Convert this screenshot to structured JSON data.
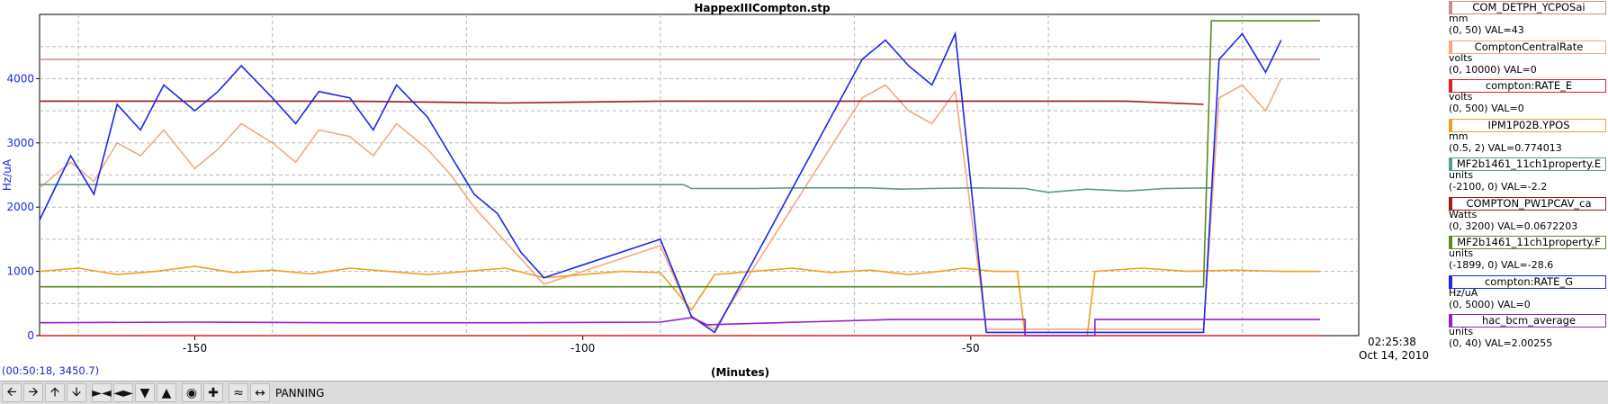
{
  "chart_data": {
    "type": "line",
    "title": "HappexIIICompton.stp",
    "xlabel": "(Minutes)",
    "ylabel": "Hz/uA",
    "xlim": [
      -170,
      0
    ],
    "ylim": [
      0,
      5000
    ],
    "x_ticks": [
      -150,
      -100,
      -50
    ],
    "y_ticks": [
      0,
      1000,
      2000,
      3000,
      4000
    ],
    "grid": true,
    "legend_position": "right",
    "series": [
      {
        "name": "COM_DETPH_YCPOSai",
        "color": "#c8908a",
        "unit": "mm",
        "range": "(0, 50)",
        "val": "VAL=43",
        "values": [
          [
            -170,
            4300
          ],
          [
            -5,
            4300
          ]
        ]
      },
      {
        "name": "ComptonCentralRate",
        "color": "#f4a882",
        "unit": "volts",
        "range": "(0, 10000)",
        "val": "VAL=0",
        "values": [
          [
            -170,
            2300
          ],
          [
            -166,
            2700
          ],
          [
            -163,
            2400
          ],
          [
            -160,
            3000
          ],
          [
            -157,
            2800
          ],
          [
            -154,
            3200
          ],
          [
            -150,
            2600
          ],
          [
            -147,
            2900
          ],
          [
            -144,
            3300
          ],
          [
            -140,
            3000
          ],
          [
            -137,
            2700
          ],
          [
            -134,
            3200
          ],
          [
            -130,
            3100
          ],
          [
            -127,
            2800
          ],
          [
            -124,
            3300
          ],
          [
            -120,
            2900
          ],
          [
            -117,
            2500
          ],
          [
            -114,
            2000
          ],
          [
            -111,
            1600
          ],
          [
            -108,
            1200
          ],
          [
            -105,
            800
          ],
          [
            -90,
            1400
          ],
          [
            -86,
            300
          ],
          [
            -83,
            100
          ],
          [
            -64,
            3700
          ],
          [
            -61,
            3900
          ],
          [
            -58,
            3500
          ],
          [
            -55,
            3300
          ],
          [
            -52,
            3800
          ],
          [
            -48,
            100
          ],
          [
            -20,
            100
          ],
          [
            -18,
            3700
          ],
          [
            -15,
            3900
          ],
          [
            -12,
            3500
          ],
          [
            -10,
            4000
          ]
        ]
      },
      {
        "name": "compton:RATE_E",
        "color": "#e02020",
        "unit": "volts",
        "range": "(0, 500)",
        "val": "VAL=0",
        "values": [
          [
            -170,
            0
          ],
          [
            -5,
            0
          ]
        ]
      },
      {
        "name": "IPM1P02B.YPOS",
        "color": "#f0a020",
        "unit": "mm",
        "range": "(0.5, 2)",
        "val": "VAL=0.774013",
        "values": [
          [
            -170,
            1000
          ],
          [
            -165,
            1050
          ],
          [
            -160,
            950
          ],
          [
            -155,
            1000
          ],
          [
            -150,
            1080
          ],
          [
            -145,
            980
          ],
          [
            -140,
            1020
          ],
          [
            -135,
            960
          ],
          [
            -130,
            1050
          ],
          [
            -125,
            1000
          ],
          [
            -120,
            950
          ],
          [
            -115,
            1000
          ],
          [
            -110,
            1050
          ],
          [
            -105,
            900
          ],
          [
            -100,
            950
          ],
          [
            -95,
            1000
          ],
          [
            -90,
            980
          ],
          [
            -86,
            400
          ],
          [
            -83,
            950
          ],
          [
            -78,
            1000
          ],
          [
            -73,
            1050
          ],
          [
            -68,
            980
          ],
          [
            -63,
            1020
          ],
          [
            -58,
            950
          ],
          [
            -54,
            1000
          ],
          [
            -51,
            1050
          ],
          [
            -47,
            1000
          ],
          [
            -44,
            1000
          ],
          [
            -43,
            0
          ],
          [
            -35,
            0
          ],
          [
            -34,
            1000
          ],
          [
            -28,
            1050
          ],
          [
            -22,
            1000
          ],
          [
            -16,
            1020
          ],
          [
            -10,
            1000
          ],
          [
            -5,
            1000
          ]
        ]
      },
      {
        "name": "MF2b1461_11ch1property.E",
        "color": "#5a9a90",
        "unit": "units",
        "range": "(-2100, 0)",
        "val": "VAL=-2.2",
        "values": [
          [
            -170,
            2350
          ],
          [
            -87,
            2350
          ],
          [
            -86,
            2290
          ],
          [
            -78,
            2290
          ],
          [
            -73,
            2300
          ],
          [
            -63,
            2300
          ],
          [
            -59,
            2280
          ],
          [
            -55,
            2290
          ],
          [
            -50,
            2300
          ],
          [
            -43,
            2290
          ],
          [
            -40,
            2230
          ],
          [
            -35,
            2280
          ],
          [
            -30,
            2250
          ],
          [
            -25,
            2290
          ],
          [
            -19,
            2300
          ]
        ]
      },
      {
        "name": "COMPTON_PW1PCAV_ca",
        "color": "#a01818",
        "unit": "Watts",
        "range": "(0, 3200)",
        "val": "VAL=0.0672203",
        "values": [
          [
            -170,
            3650
          ],
          [
            -150,
            3650
          ],
          [
            -130,
            3650
          ],
          [
            -110,
            3620
          ],
          [
            -90,
            3650
          ],
          [
            -70,
            3650
          ],
          [
            -50,
            3650
          ],
          [
            -30,
            3650
          ],
          [
            -20,
            3600
          ]
        ]
      },
      {
        "name": "MF2b1461_11ch1property.F",
        "color": "#5a8a20",
        "unit": "units",
        "range": "(-1899, 0)",
        "val": "VAL=-28.6",
        "values": [
          [
            -170,
            760
          ],
          [
            -20,
            760
          ],
          [
            -19,
            4900
          ],
          [
            -5,
            4900
          ]
        ]
      },
      {
        "name": "compton:RATE_G",
        "color": "#1a28e8",
        "unit": "Hz/uA",
        "range": "(0, 5000)",
        "val": "VAL=0",
        "values": [
          [
            -170,
            1800
          ],
          [
            -166,
            2800
          ],
          [
            -163,
            2200
          ],
          [
            -160,
            3600
          ],
          [
            -157,
            3200
          ],
          [
            -154,
            3900
          ],
          [
            -150,
            3500
          ],
          [
            -147,
            3800
          ],
          [
            -144,
            4200
          ],
          [
            -140,
            3700
          ],
          [
            -137,
            3300
          ],
          [
            -134,
            3800
          ],
          [
            -130,
            3700
          ],
          [
            -127,
            3200
          ],
          [
            -124,
            3900
          ],
          [
            -120,
            3400
          ],
          [
            -117,
            2800
          ],
          [
            -114,
            2200
          ],
          [
            -111,
            1900
          ],
          [
            -108,
            1300
          ],
          [
            -105,
            900
          ],
          [
            -90,
            1500
          ],
          [
            -86,
            300
          ],
          [
            -83,
            50
          ],
          [
            -64,
            4300
          ],
          [
            -61,
            4600
          ],
          [
            -58,
            4200
          ],
          [
            -55,
            3900
          ],
          [
            -52,
            4700
          ],
          [
            -48,
            50
          ],
          [
            -20,
            50
          ],
          [
            -18,
            4300
          ],
          [
            -15,
            4700
          ],
          [
            -12,
            4100
          ],
          [
            -10,
            4600
          ]
        ]
      },
      {
        "name": "hac_bcm_average",
        "color": "#9020d0",
        "unit": "units",
        "range": "(0, 40)",
        "val": "VAL=2.00255",
        "values": [
          [
            -170,
            200
          ],
          [
            -150,
            210
          ],
          [
            -130,
            200
          ],
          [
            -110,
            200
          ],
          [
            -90,
            210
          ],
          [
            -86,
            280
          ],
          [
            -84,
            170
          ],
          [
            -60,
            250
          ],
          [
            -43,
            250
          ],
          [
            -43,
            0
          ],
          [
            -34,
            0
          ],
          [
            -34,
            250
          ],
          [
            -5,
            250
          ]
        ]
      }
    ]
  },
  "end_time": "02:25:38",
  "end_date": "Oct 14, 2010",
  "cursor_readout": "(00:50:18, 3450.7)",
  "toolbar": {
    "buttons": [
      "arrow-left-icon",
      "arrow-right-icon",
      "arrow-up-icon",
      "arrow-down-icon",
      "zoom-in-x-icon",
      "zoom-out-x-icon",
      "zoom-in-y-icon",
      "zoom-out-y-icon",
      "record-icon",
      "crosshair-icon",
      "autoscale-icon",
      "fit-width-icon"
    ],
    "mode": "PANNING"
  }
}
